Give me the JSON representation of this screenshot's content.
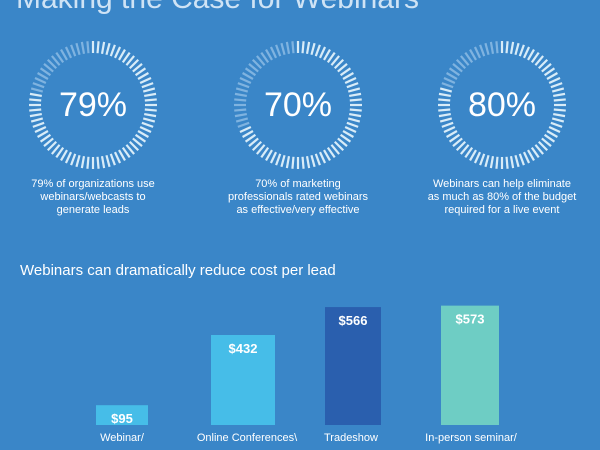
{
  "header": {
    "title": "Making the Case for Webinars"
  },
  "stats": [
    {
      "percent": 79,
      "label": "79%",
      "caption": [
        "79% of organizations use",
        "webinars/webcasts to",
        "generate leads"
      ]
    },
    {
      "percent": 70,
      "label": "70%",
      "caption": [
        "70% of marketing",
        "professionals rated webinars",
        "as effective/very effective"
      ]
    },
    {
      "percent": 80,
      "label": "80%",
      "caption": [
        "Webinars can help eliminate",
        "as much as 80% of the budget",
        "required for a live event"
      ]
    }
  ],
  "colors": {
    "ring_filled": "#d8ecf8",
    "ring_empty": "#7fb3e0",
    "bar_colors": [
      "#46bde8",
      "#46bde8",
      "#2a5fae",
      "#6ecdc4"
    ]
  },
  "chart_data": {
    "type": "bar",
    "title": "Webinars can dramatically reduce cost per lead",
    "categories": [
      "Webinar/",
      "Online Conferences\\",
      "Tradeshow",
      "In-person seminar/"
    ],
    "values": [
      95,
      432,
      566,
      573
    ],
    "value_labels": [
      "$95",
      "$432",
      "$566",
      "$573"
    ],
    "ylim": [
      0,
      600
    ]
  }
}
